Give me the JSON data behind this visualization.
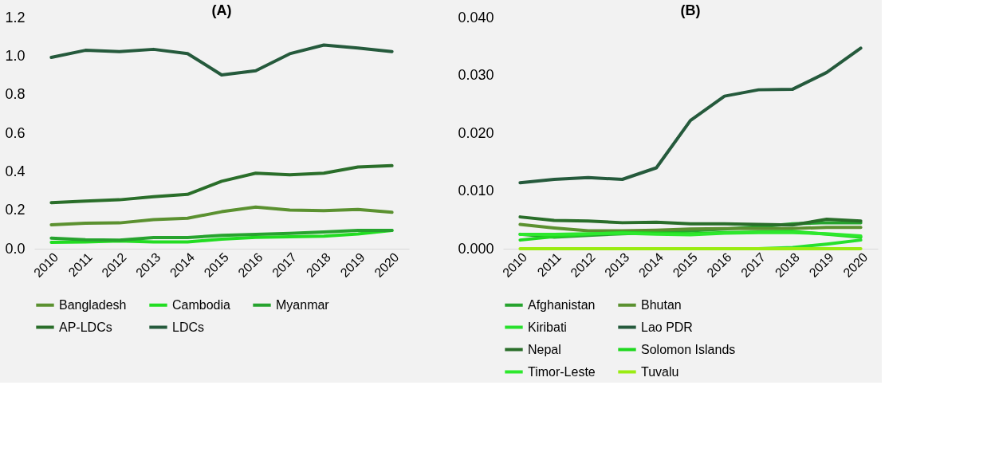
{
  "chart_data": [
    {
      "type": "line",
      "title": "(A)",
      "categories": [
        "2010",
        "2011",
        "2012",
        "2013",
        "2014",
        "2015",
        "2016",
        "2017",
        "2018",
        "2019",
        "2020"
      ],
      "ylim": [
        0,
        1.2
      ],
      "yticks": [
        {
          "value": 0,
          "label": "0.0"
        },
        {
          "value": 0.2,
          "label": "0.2"
        },
        {
          "value": 0.4,
          "label": "0.4"
        },
        {
          "value": 0.6,
          "label": "0.6"
        },
        {
          "value": 0.8,
          "label": "0.8"
        },
        {
          "value": 1.0,
          "label": "1.0"
        },
        {
          "value": 1.2,
          "label": "1.2"
        }
      ],
      "grid": false,
      "legend": "bottom",
      "marker": "none",
      "line_style": "solid",
      "series": [
        {
          "name": "Bangladesh",
          "color": "#5b9130",
          "values": [
            0.124,
            0.132,
            0.134,
            0.151,
            0.158,
            0.192,
            0.216,
            0.201,
            0.198,
            0.204,
            0.189
          ]
        },
        {
          "name": "Cambodia",
          "color": "#22dd22",
          "values": [
            0.033,
            0.035,
            0.04,
            0.035,
            0.035,
            0.05,
            0.059,
            0.062,
            0.065,
            0.077,
            0.095
          ]
        },
        {
          "name": "Myanmar",
          "color": "#26a32e",
          "values": [
            0.055,
            0.047,
            0.044,
            0.058,
            0.058,
            0.069,
            0.074,
            0.08,
            0.087,
            0.095,
            0.095
          ]
        },
        {
          "name": "AP-LDCs",
          "color": "#2a6e2a",
          "values": [
            0.239,
            0.247,
            0.254,
            0.27,
            0.282,
            0.35,
            0.392,
            0.384,
            0.392,
            0.424,
            0.431
          ]
        },
        {
          "name": "LDCs",
          "color": "#255a3c",
          "values": [
            0.993,
            1.03,
            1.023,
            1.035,
            1.013,
            0.902,
            0.924,
            1.012,
            1.057,
            1.042,
            1.023
          ]
        }
      ]
    },
    {
      "type": "line",
      "title": "(B)",
      "categories": [
        "2010",
        "2011",
        "2012",
        "2013",
        "2014",
        "2015",
        "2016",
        "2017",
        "2018",
        "2019",
        "2020"
      ],
      "ylim": [
        0,
        0.04
      ],
      "yticks": [
        {
          "value": 0,
          "label": "0.000"
        },
        {
          "value": 0.01,
          "label": "0.010"
        },
        {
          "value": 0.02,
          "label": "0.020"
        },
        {
          "value": 0.03,
          "label": "0.030"
        },
        {
          "value": 0.04,
          "label": "0.040"
        }
      ],
      "grid": false,
      "legend": "bottom",
      "marker": "none",
      "line_style": "solid",
      "series": [
        {
          "name": "Afghanistan",
          "color": "#26a32e",
          "values": [
            0.0025,
            0.002,
            0.0023,
            0.0026,
            0.0028,
            0.0031,
            0.0034,
            0.0038,
            0.0043,
            0.0045,
            0.0045
          ]
        },
        {
          "name": "Bhutan",
          "color": "#5b9130",
          "values": [
            0.0042,
            0.0036,
            0.0031,
            0.0031,
            0.0032,
            0.0034,
            0.0035,
            0.0035,
            0.0035,
            0.0037,
            0.0037
          ]
        },
        {
          "name": "Kiribati",
          "color": "#28e02d",
          "values": [
            null,
            null,
            null,
            null,
            null,
            null,
            null,
            0,
            0.0002,
            0.0008,
            0.0015
          ]
        },
        {
          "name": "Lao PDR",
          "color": "#255a3c",
          "values": [
            0.0114,
            0.012,
            0.0123,
            0.012,
            0.014,
            0.0222,
            0.0264,
            0.0275,
            0.0276,
            0.0305,
            0.0347
          ]
        },
        {
          "name": "Nepal",
          "color": "#2a6e2a",
          "values": [
            0.0055,
            0.0049,
            0.0048,
            0.0045,
            0.0046,
            0.0043,
            0.0043,
            0.0042,
            0.0041,
            0.0051,
            0.0048
          ]
        },
        {
          "name": "Solomon Islands",
          "color": "#1fd81f",
          "values": [
            0.0015,
            0.0021,
            0.0025,
            0.0028,
            0.0027,
            0.0026,
            0.0028,
            0.0029,
            0.003,
            0.0025,
            0.002
          ]
        },
        {
          "name": "Timor-Leste",
          "color": "#2de82d",
          "values": [
            0.0025,
            0.0025,
            0.0026,
            0.0027,
            0.0025,
            0.0024,
            0.0027,
            0.0028,
            0.0028,
            0.0026,
            0.0022
          ]
        },
        {
          "name": "Tuvalu",
          "color": "#9aec12",
          "values": [
            0,
            0,
            0,
            0,
            0,
            0,
            0,
            0,
            0,
            0,
            0
          ]
        }
      ]
    }
  ]
}
